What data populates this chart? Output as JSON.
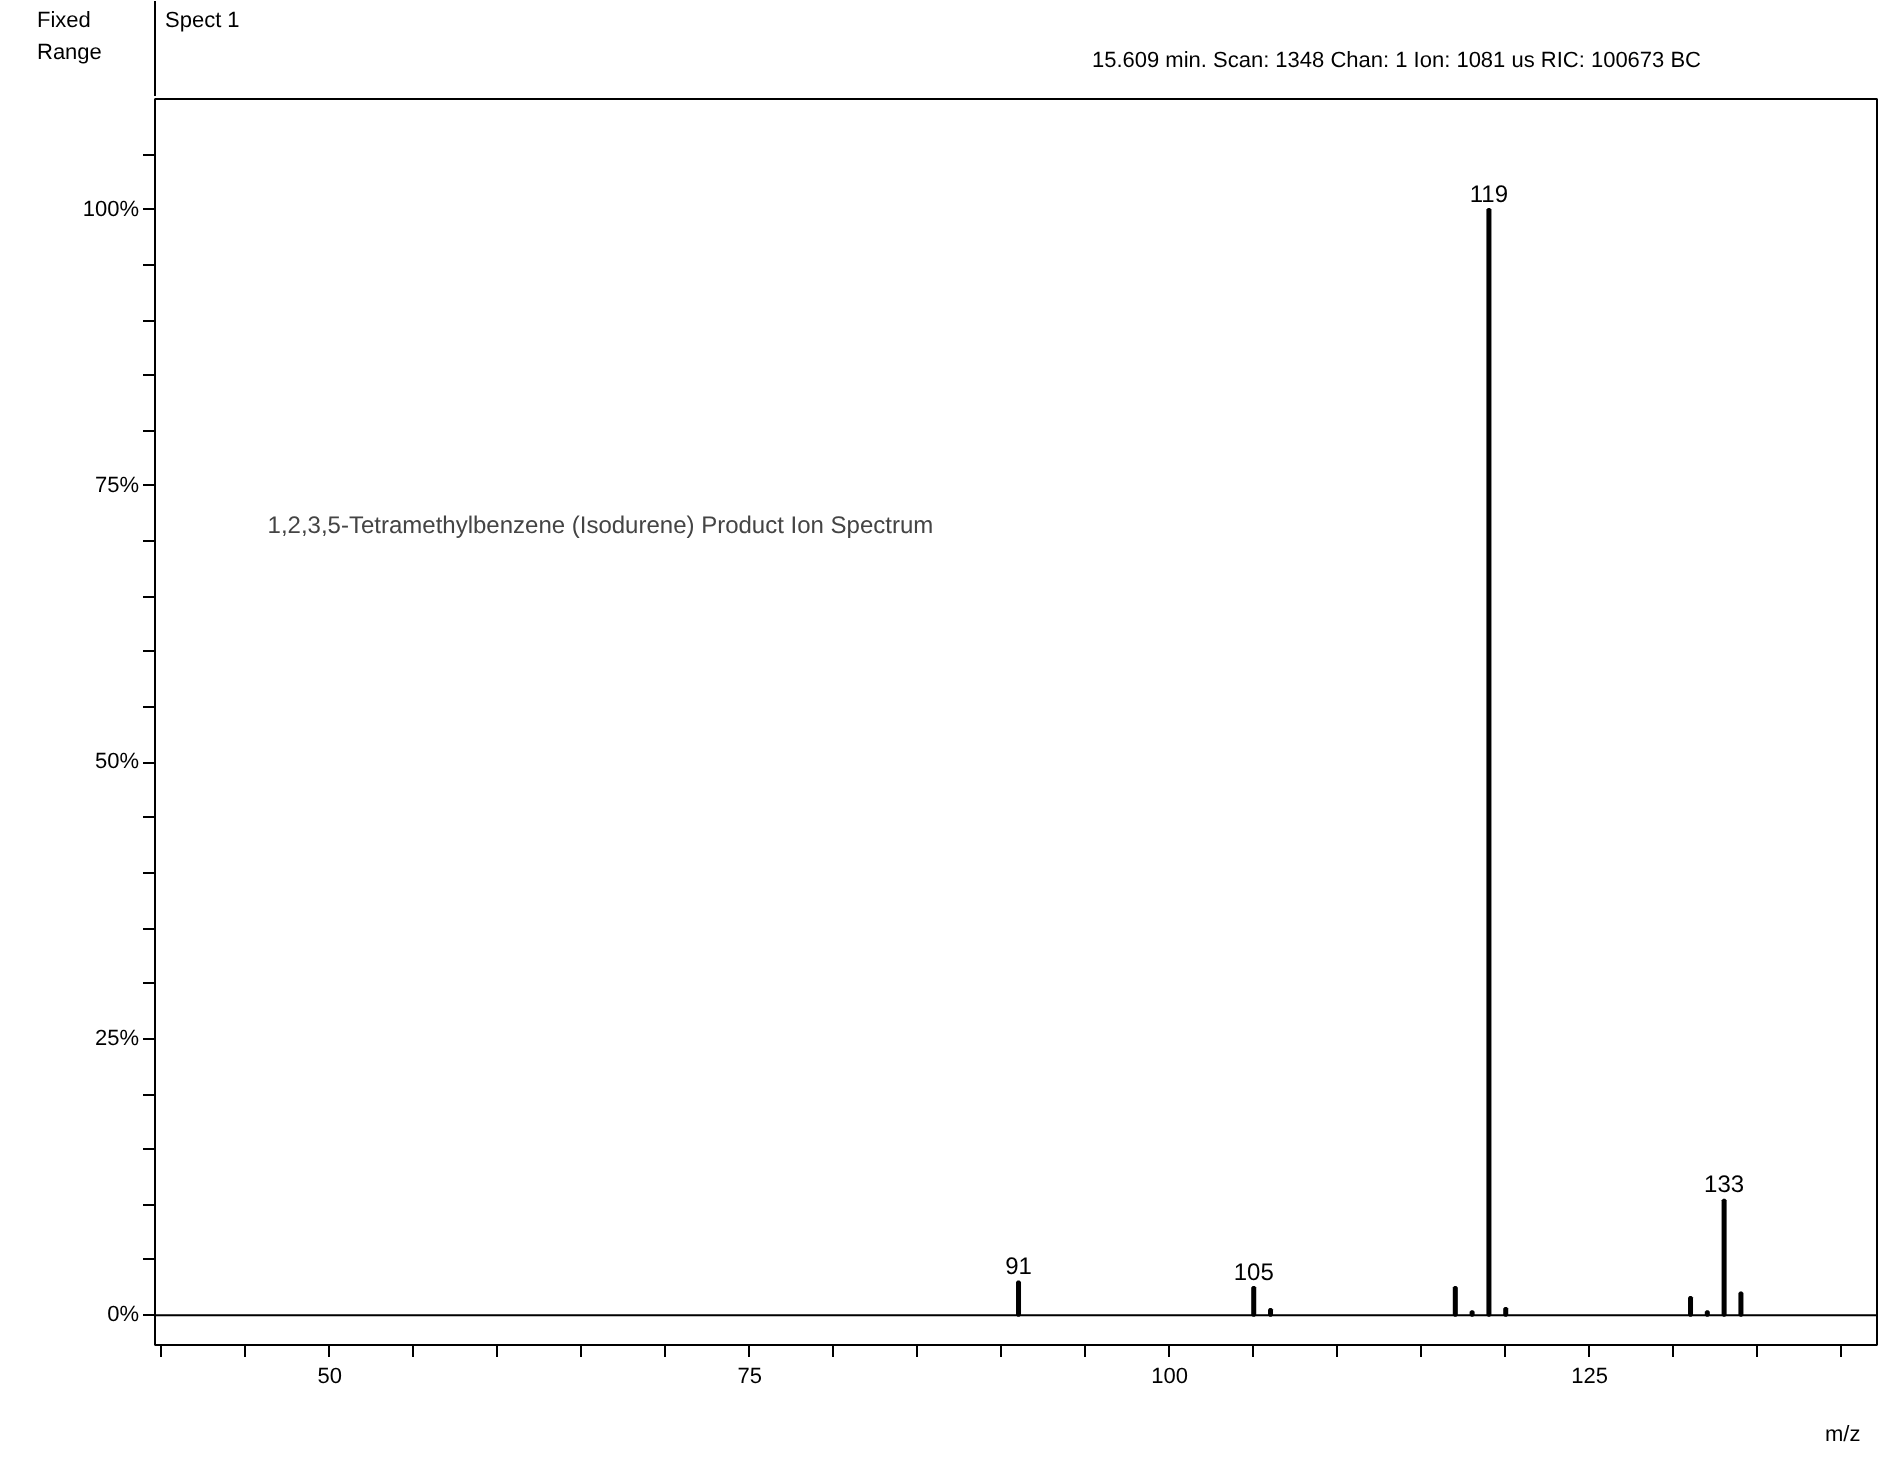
{
  "chart_data": {
    "type": "bar",
    "title": "1,2,3,5-Tetramethylbenzene (Isodurene) Product Ion Spectrum",
    "subtitle": "15.609 min. Scan: 1348 Chan: 1 Ion: 1081 us RIC: 100673 BC",
    "xlabel": "m/z",
    "x": [
      91,
      105,
      106,
      117,
      118,
      119,
      120,
      131,
      132,
      133,
      134
    ],
    "values": [
      3.0,
      2.5,
      0.5,
      2.5,
      0.3,
      100,
      0.6,
      1.6,
      0.3,
      10.4,
      2.0
    ],
    "color": "#000000",
    "xlim": [
      39.6,
      142.1
    ],
    "ylim": [
      -2.7,
      110
    ],
    "xticks": [
      {
        "value": 40,
        "label": null
      },
      {
        "value": 45,
        "label": null
      },
      50,
      {
        "value": 55,
        "label": null
      },
      {
        "value": 60,
        "label": null
      },
      {
        "value": 65,
        "label": null
      },
      {
        "value": 70,
        "label": null
      },
      75,
      {
        "value": 80,
        "label": null
      },
      {
        "value": 85,
        "label": null
      },
      {
        "value": 90,
        "label": null
      },
      {
        "value": 95,
        "label": null
      },
      100,
      {
        "value": 105,
        "label": null
      },
      {
        "value": 110,
        "label": null
      },
      {
        "value": 115,
        "label": null
      },
      {
        "value": 120,
        "label": null
      },
      125,
      {
        "value": 130,
        "label": null
      },
      {
        "value": 135,
        "label": null
      },
      {
        "value": 140,
        "label": null
      }
    ],
    "yticks": [
      {
        "value": 0,
        "label": "0%"
      },
      {
        "value": 5,
        "label": null
      },
      {
        "value": 10,
        "label": null
      },
      {
        "value": 15,
        "label": null
      },
      {
        "value": 20,
        "label": null
      },
      {
        "value": 25,
        "label": "25%"
      },
      {
        "value": 30,
        "label": null
      },
      {
        "value": 35,
        "label": null
      },
      {
        "value": 40,
        "label": null
      },
      {
        "value": 45,
        "label": null
      },
      {
        "value": 50,
        "label": "50%"
      },
      {
        "value": 55,
        "label": null
      },
      {
        "value": 60,
        "label": null
      },
      {
        "value": 65,
        "label": null
      },
      {
        "value": 70,
        "label": null
      },
      {
        "value": 75,
        "label": "75%"
      },
      {
        "value": 80,
        "label": null
      },
      {
        "value": 85,
        "label": null
      },
      {
        "value": 90,
        "label": null
      },
      {
        "value": 95,
        "label": null
      },
      {
        "value": 100,
        "label": "100%"
      },
      {
        "value": 105,
        "label": null
      }
    ],
    "annotations": [
      "Fixed Range",
      "Spect 1",
      {
        "text": "91",
        "x": 91,
        "y": 3.0
      },
      {
        "text": "105",
        "x": 105,
        "y": 2.5
      },
      {
        "text": "119",
        "x": 119,
        "y": 100
      },
      {
        "text": "133",
        "x": 133,
        "y": 10.4
      }
    ],
    "grid": false
  }
}
